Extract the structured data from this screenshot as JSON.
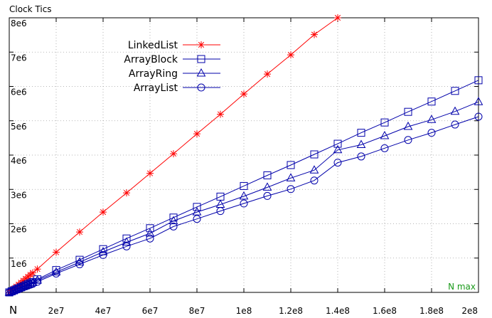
{
  "chart_data": {
    "type": "line",
    "ylabel": "Clock Tics",
    "xlabel": "N",
    "corner_label": "N max",
    "xlim": [
      0,
      200000000
    ],
    "ylim": [
      0,
      8000000
    ],
    "x_ticks": [
      {
        "value": 20000000,
        "label": "2e7"
      },
      {
        "value": 40000000,
        "label": "4e7"
      },
      {
        "value": 60000000,
        "label": "6e7"
      },
      {
        "value": 80000000,
        "label": "8e7"
      },
      {
        "value": 100000000,
        "label": "1e8"
      },
      {
        "value": 120000000,
        "label": "1.2e8"
      },
      {
        "value": 140000000,
        "label": "1.4e8"
      },
      {
        "value": 160000000,
        "label": "1.6e8"
      },
      {
        "value": 180000000,
        "label": "1.8e8"
      },
      {
        "value": 200000000,
        "label": "2e8"
      }
    ],
    "y_ticks": [
      {
        "value": 1000000,
        "label": "1e6"
      },
      {
        "value": 2000000,
        "label": "2e6"
      },
      {
        "value": 3000000,
        "label": "3e6"
      },
      {
        "value": 4000000,
        "label": "4e6"
      },
      {
        "value": 5000000,
        "label": "5e6"
      },
      {
        "value": 6000000,
        "label": "6e6"
      },
      {
        "value": 7000000,
        "label": "7e6"
      },
      {
        "value": 8000000,
        "label": "8e6"
      }
    ],
    "grid": true,
    "legend_position": "top-left",
    "series": [
      {
        "name": "LinkedList",
        "color": "#ff0000",
        "marker": "star",
        "x": [
          0,
          1000000,
          2000000,
          3000000,
          4000000,
          5000000,
          6000000,
          7000000,
          8000000,
          9000000,
          10000000,
          12000000,
          20000000,
          30000000,
          40000000,
          50000000,
          60000000,
          70000000,
          80000000,
          90000000,
          100000000,
          110000000,
          120000000,
          130000000,
          140000000
        ],
        "y": [
          0,
          57000,
          114000,
          171000,
          228000,
          285000,
          342000,
          399000,
          456000,
          513000,
          570000,
          680000,
          1170000,
          1760000,
          2340000,
          2900000,
          3470000,
          4040000,
          4620000,
          5190000,
          5780000,
          6360000,
          6920000,
          7510000,
          8000000
        ]
      },
      {
        "name": "ArrayBlock",
        "color": "#0000aa",
        "marker": "square",
        "x": [
          0,
          1000000,
          2000000,
          3000000,
          4000000,
          5000000,
          6000000,
          7000000,
          8000000,
          9000000,
          10000000,
          12000000,
          20000000,
          30000000,
          40000000,
          50000000,
          60000000,
          70000000,
          80000000,
          90000000,
          100000000,
          110000000,
          120000000,
          130000000,
          140000000,
          150000000,
          160000000,
          170000000,
          180000000,
          190000000,
          200000000
        ],
        "y": [
          0,
          30000,
          60000,
          90000,
          120000,
          150000,
          180000,
          210000,
          240000,
          270000,
          300000,
          380000,
          650000,
          950000,
          1260000,
          1570000,
          1870000,
          2180000,
          2490000,
          2790000,
          3100000,
          3410000,
          3710000,
          4020000,
          4330000,
          4650000,
          4950000,
          5260000,
          5560000,
          5870000,
          6180000
        ]
      },
      {
        "name": "ArrayRing",
        "color": "#0000aa",
        "marker": "triangle",
        "x": [
          0,
          1000000,
          2000000,
          3000000,
          4000000,
          5000000,
          6000000,
          7000000,
          8000000,
          9000000,
          10000000,
          12000000,
          20000000,
          30000000,
          40000000,
          50000000,
          60000000,
          70000000,
          80000000,
          90000000,
          100000000,
          110000000,
          120000000,
          130000000,
          140000000,
          150000000,
          160000000,
          170000000,
          180000000,
          190000000,
          200000000
        ],
        "y": [
          0,
          28000,
          56000,
          84000,
          112000,
          140000,
          168000,
          196000,
          224000,
          252000,
          280000,
          350000,
          590000,
          880000,
          1180000,
          1460000,
          1720000,
          2080000,
          2340000,
          2560000,
          2800000,
          3060000,
          3330000,
          3560000,
          4150000,
          4300000,
          4560000,
          4830000,
          5030000,
          5270000,
          5550000
        ]
      },
      {
        "name": "ArrayList",
        "color": "#0000aa",
        "marker": "circle",
        "x": [
          0,
          1000000,
          2000000,
          3000000,
          4000000,
          5000000,
          6000000,
          7000000,
          8000000,
          9000000,
          10000000,
          12000000,
          20000000,
          30000000,
          40000000,
          50000000,
          60000000,
          70000000,
          80000000,
          90000000,
          100000000,
          110000000,
          120000000,
          130000000,
          140000000,
          150000000,
          160000000,
          170000000,
          180000000,
          190000000,
          200000000
        ],
        "y": [
          0,
          25000,
          50000,
          75000,
          100000,
          125000,
          150000,
          175000,
          200000,
          225000,
          250000,
          310000,
          550000,
          820000,
          1090000,
          1340000,
          1570000,
          1920000,
          2140000,
          2370000,
          2590000,
          2810000,
          3010000,
          3260000,
          3780000,
          3960000,
          4200000,
          4440000,
          4650000,
          4890000,
          5120000
        ]
      }
    ]
  }
}
